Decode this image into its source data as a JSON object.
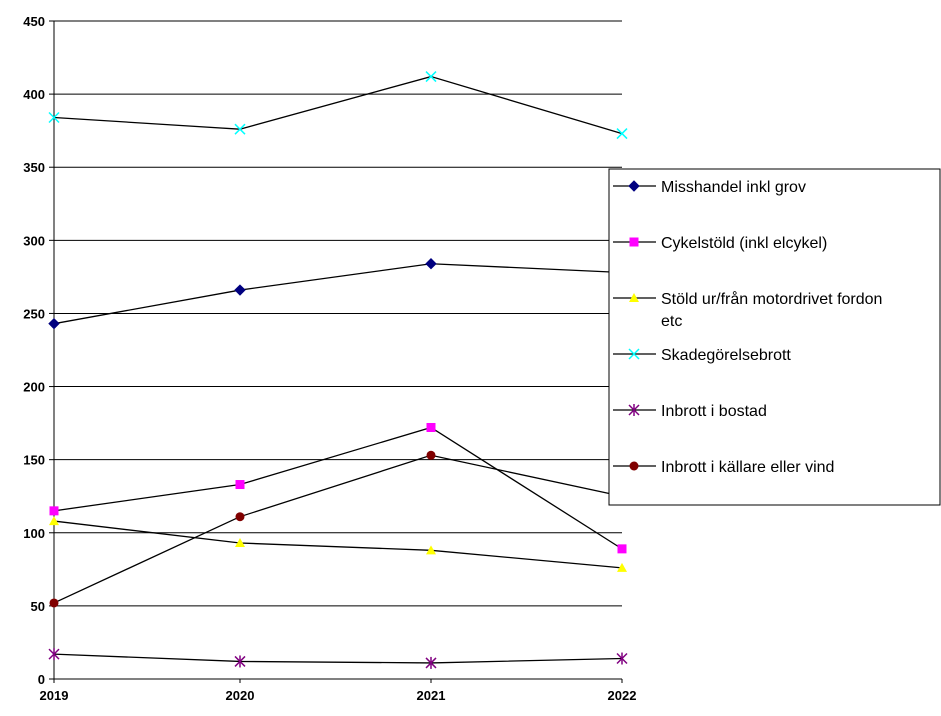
{
  "chart_data": {
    "type": "line",
    "title": "",
    "xlabel": "",
    "ylabel": "",
    "categories": [
      "2019",
      "2020",
      "2021",
      "2022"
    ],
    "ylim": [
      0,
      450
    ],
    "yticks": [
      0,
      50,
      100,
      150,
      200,
      250,
      300,
      350,
      400,
      450
    ],
    "grid": "horizontal",
    "legend_position": "right",
    "series": [
      {
        "name": "Misshandel inkl grov",
        "marker": "diamond",
        "color": "#000080",
        "values": [
          243,
          266,
          284,
          278
        ]
      },
      {
        "name": "Cykelstöld (inkl elcykel)",
        "marker": "square",
        "color": "#FF00FF",
        "values": [
          115,
          133,
          172,
          89
        ]
      },
      {
        "name_lines": [
          "Stöld ur/från motordrivet fordon",
          "etc"
        ],
        "name": "Stöld ur/från motordrivet fordon etc",
        "marker": "triangle",
        "color": "#FFFF00",
        "values": [
          108,
          93,
          88,
          76
        ]
      },
      {
        "name": "Skadegörelsebrott",
        "marker": "x",
        "color": "#00FFFF",
        "values": [
          384,
          376,
          412,
          373
        ]
      },
      {
        "name": "Inbrott i bostad",
        "marker": "asterisk",
        "color": "#800080",
        "values": [
          17,
          12,
          11,
          14
        ]
      },
      {
        "name": "Inbrott i källare eller vind",
        "marker": "circle",
        "color": "#800000",
        "values": [
          52,
          111,
          153,
          125
        ]
      }
    ]
  }
}
